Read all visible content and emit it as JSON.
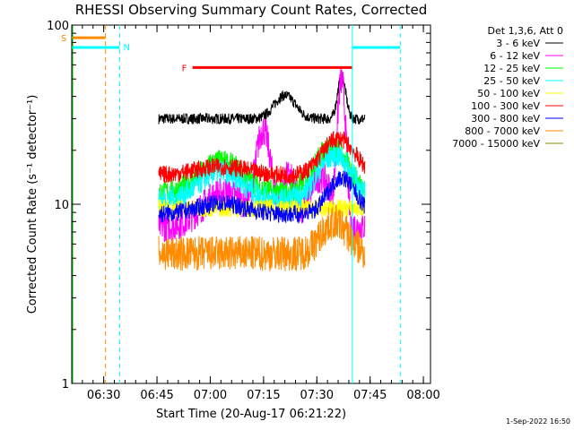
{
  "chart_data": {
    "type": "line",
    "title": "RHESSI Observing Summary Count Rates, Corrected",
    "xlabel": "Start Time (20-Aug-17 06:21:22)",
    "ylabel": "Corrected Count Rate (s⁻¹ detector⁻¹)",
    "footer": "1-Sep-2022 16:50",
    "y_scale": "log",
    "ylim": [
      1,
      100
    ],
    "xlim_min": [
      0,
      101
    ],
    "x_ticks": [
      {
        "min": 9,
        "label": "06:30"
      },
      {
        "min": 24,
        "label": "06:45"
      },
      {
        "min": 39,
        "label": "07:00"
      },
      {
        "min": 54,
        "label": "07:15"
      },
      {
        "min": 69,
        "label": "07:30"
      },
      {
        "min": 84,
        "label": "07:45"
      },
      {
        "min": 99,
        "label": "08:00"
      }
    ],
    "y_ticks": [
      {
        "value": 1,
        "label": "1"
      },
      {
        "value": 10,
        "label": "10"
      },
      {
        "value": 100,
        "label": "100"
      }
    ],
    "legend_header": "Det 1,3,6, Att 0",
    "legend_position": "right",
    "series": [
      {
        "name": "3 - 6 keV",
        "color": "#000000",
        "base": 30,
        "amp": 0.03,
        "peaks": [
          [
            60,
            4,
            1.35
          ],
          [
            76,
            1.5,
            1.7
          ]
        ]
      },
      {
        "name": "6 - 12 keV",
        "color": "#ff00ff",
        "base": 7.5,
        "amp": 0.09,
        "peaks": [
          [
            43,
            8,
            1.55
          ],
          [
            54,
            2.5,
            3.2
          ],
          [
            61,
            2.5,
            1.9
          ],
          [
            70,
            4,
            1.9
          ],
          [
            76,
            1.3,
            6.0
          ]
        ]
      },
      {
        "name": "12 - 25 keV",
        "color": "#00ff00",
        "base": 11.5,
        "amp": 0.07,
        "peaks": [
          [
            42,
            8,
            1.5
          ],
          [
            73,
            6,
            1.8
          ]
        ]
      },
      {
        "name": "25 - 50 keV",
        "color": "#00ffff",
        "base": 10.5,
        "amp": 0.07,
        "peaks": [
          [
            42,
            8,
            1.45
          ],
          [
            74,
            6,
            1.8
          ]
        ]
      },
      {
        "name": "50 - 100 keV",
        "color": "#ffff00",
        "base": 9.5,
        "amp": 0.05,
        "peaks": []
      },
      {
        "name": "100 - 300 keV",
        "color": "#ff0000",
        "base": 14.5,
        "amp": 0.05,
        "peaks": [
          [
            42,
            10,
            1.12
          ],
          [
            75,
            6,
            1.6
          ]
        ]
      },
      {
        "name": "300 - 800 keV",
        "color": "#0000ff",
        "base": 8.8,
        "amp": 0.05,
        "peaks": [
          [
            42,
            9,
            1.15
          ],
          [
            76,
            5,
            1.6
          ]
        ]
      },
      {
        "name": "800 - 7000 keV",
        "color": "#ff8c00",
        "base": 5.3,
        "amp": 0.1,
        "peaks": [
          [
            74,
            5,
            1.5
          ]
        ]
      },
      {
        "name": "7000 - 15000 keV",
        "color": "#8b8b00",
        "base": 1.0,
        "amp": 0.0,
        "peaks": []
      }
    ],
    "data_window_min": [
      24.5,
      82.5
    ],
    "attenuator_lines": [
      {
        "label": "S",
        "color": "#ff8c00",
        "min": [
          0,
          9.5
        ],
        "y": 85,
        "x_line_min": 9.5,
        "x_line_style": "dashed"
      },
      {
        "label": "N",
        "color": "#00ffff",
        "min": [
          0,
          13.5
        ],
        "y": 75,
        "x_line_min": 13.5,
        "x_line_style": "dashed"
      },
      {
        "label": "N",
        "color": "#00ffff",
        "min": [
          79,
          92.5
        ],
        "y": 75,
        "x_line_min": 92.5,
        "x_line_style": "dashed"
      },
      {
        "label": "F",
        "color": "#ff0000",
        "min": [
          34,
          79
        ],
        "y": 58,
        "x_line_min": null,
        "x_line_style": "solid"
      }
    ],
    "solid_marker_min": 79,
    "marker_labels": [
      "S",
      "N",
      "F"
    ],
    "grid": false
  }
}
